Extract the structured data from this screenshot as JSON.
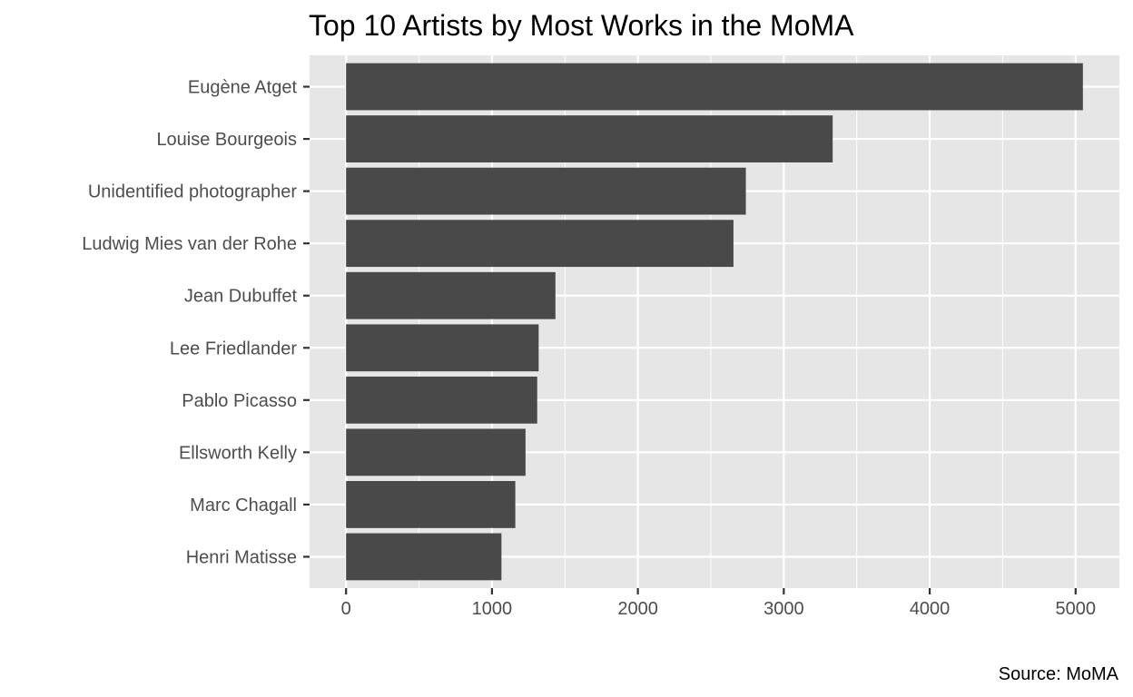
{
  "chart_data": {
    "type": "bar",
    "orientation": "horizontal",
    "title": "Top 10 Artists by Most Works in the MoMA",
    "caption": "Source: MoMA",
    "xlabel": "",
    "ylabel": "",
    "categories": [
      "Eugène Atget",
      "Louise Bourgeois",
      "Unidentified photographer",
      "Ludwig Mies van der Rohe",
      "Jean Dubuffet",
      "Lee Friedlander",
      "Pablo Picasso",
      "Ellsworth Kelly",
      "Marc Chagall",
      "Henri Matisse"
    ],
    "values": [
      5050,
      3335,
      2740,
      2655,
      1435,
      1320,
      1310,
      1230,
      1160,
      1065
    ],
    "xlim": [
      -250,
      5300
    ],
    "x_ticks": [
      0,
      1000,
      2000,
      3000,
      4000,
      5000
    ],
    "x_tick_labels": [
      "0",
      "1000",
      "2000",
      "3000",
      "4000",
      "5000"
    ],
    "grid": true,
    "bar_color": "#494949",
    "panel_background": "#e6e6e6",
    "grid_color": "#ffffff"
  }
}
